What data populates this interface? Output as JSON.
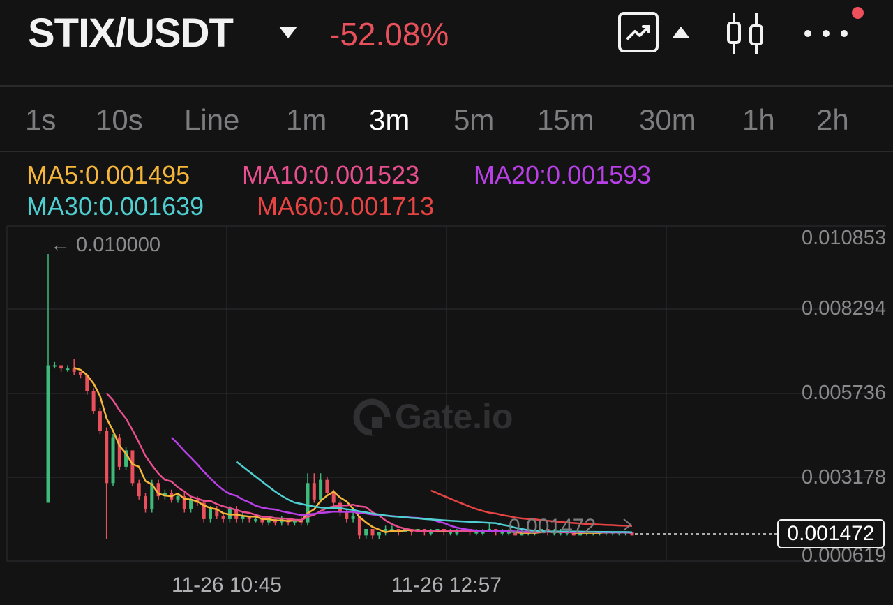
{
  "header": {
    "pair": "STIX/USDT",
    "change": "-52.08%",
    "icons": [
      "chevron-down-icon",
      "line-chart-toggle-icon",
      "chevron-up-icon",
      "candlestick-icon",
      "more-icon",
      "notification-dot"
    ]
  },
  "timeframes": [
    "1s",
    "10s",
    "Line",
    "1m",
    "3m",
    "5m",
    "15m",
    "30m",
    "1h",
    "2h"
  ],
  "active_timeframe": "3m",
  "ma": [
    {
      "label": "MA5:0.001495",
      "color": "#f5b63a"
    },
    {
      "label": "MA10:0.001523",
      "color": "#e94f8f"
    },
    {
      "label": "MA20:0.001593",
      "color": "#b93fe8"
    },
    {
      "label": "MA30:0.001639",
      "color": "#4fcfd1"
    },
    {
      "label": "MA60:0.001713",
      "color": "#e84444"
    }
  ],
  "colors": {
    "up": "#3fba7a",
    "down": "#e8505b",
    "accent": "#f0505b"
  },
  "watermark": "Gate.io",
  "chart_data": {
    "type": "candlestick",
    "y_ticks": [
      "0.010853",
      "0.008294",
      "0.005736",
      "0.003178",
      "0.000619"
    ],
    "x_ticks": [
      "11-26 10:45",
      "11-26 12:57"
    ],
    "high_marker": "← 0.010000",
    "last_price_label": "0.001472",
    "current_price": "0.001472",
    "ylim": [
      0.000619,
      0.010853
    ],
    "candles": [
      [
        0.0024,
        0.0066,
        0.01,
        0.0024
      ],
      [
        0.0066,
        0.0066,
        0.0067,
        0.0065
      ],
      [
        0.0066,
        0.0065,
        0.0066,
        0.0064
      ],
      [
        0.0065,
        0.0065,
        0.0066,
        0.0064
      ],
      [
        0.0065,
        0.0064,
        0.0068,
        0.0063
      ],
      [
        0.0064,
        0.0063,
        0.0064,
        0.0062
      ],
      [
        0.0063,
        0.0058,
        0.0063,
        0.0057
      ],
      [
        0.0058,
        0.0052,
        0.0059,
        0.0051
      ],
      [
        0.0052,
        0.0046,
        0.0053,
        0.0045
      ],
      [
        0.0046,
        0.003,
        0.0047,
        0.0013
      ],
      [
        0.003,
        0.0044,
        0.0045,
        0.0029
      ],
      [
        0.0044,
        0.0035,
        0.0045,
        0.0034
      ],
      [
        0.0035,
        0.004,
        0.0041,
        0.0034
      ],
      [
        0.004,
        0.003,
        0.004,
        0.0029
      ],
      [
        0.003,
        0.0026,
        0.0031,
        0.0025
      ],
      [
        0.0026,
        0.0022,
        0.0027,
        0.0021
      ],
      [
        0.0022,
        0.003,
        0.0031,
        0.0021
      ],
      [
        0.003,
        0.0026,
        0.0031,
        0.0025
      ],
      [
        0.0026,
        0.0027,
        0.0028,
        0.0025
      ],
      [
        0.0027,
        0.0025,
        0.0028,
        0.0024
      ],
      [
        0.0025,
        0.0026,
        0.0027,
        0.0024
      ],
      [
        0.0026,
        0.0022,
        0.0027,
        0.0021
      ],
      [
        0.0022,
        0.0025,
        0.0026,
        0.0021
      ],
      [
        0.0025,
        0.0024,
        0.0026,
        0.0023
      ],
      [
        0.0024,
        0.0019,
        0.0025,
        0.0018
      ],
      [
        0.0019,
        0.0022,
        0.0023,
        0.0018
      ],
      [
        0.0022,
        0.002,
        0.0023,
        0.0019
      ],
      [
        0.002,
        0.0019,
        0.0021,
        0.0018
      ],
      [
        0.0019,
        0.0022,
        0.0023,
        0.0018
      ],
      [
        0.0022,
        0.0019,
        0.0023,
        0.0018
      ],
      [
        0.0019,
        0.002,
        0.0021,
        0.0018
      ],
      [
        0.002,
        0.0019,
        0.002,
        0.0018
      ],
      [
        0.0019,
        0.0019,
        0.002,
        0.0018
      ],
      [
        0.0019,
        0.0018,
        0.002,
        0.0017
      ],
      [
        0.0018,
        0.0019,
        0.0019,
        0.0017
      ],
      [
        0.0019,
        0.0018,
        0.0019,
        0.0017
      ],
      [
        0.0018,
        0.0019,
        0.002,
        0.0017
      ],
      [
        0.0019,
        0.0018,
        0.0019,
        0.0017
      ],
      [
        0.0018,
        0.0019,
        0.0019,
        0.0017
      ],
      [
        0.0019,
        0.0018,
        0.002,
        0.0017
      ],
      [
        0.0018,
        0.003,
        0.0033,
        0.0017
      ],
      [
        0.003,
        0.0025,
        0.0033,
        0.0024
      ],
      [
        0.0025,
        0.0031,
        0.0033,
        0.0024
      ],
      [
        0.0031,
        0.0027,
        0.0032,
        0.0026
      ],
      [
        0.0027,
        0.0024,
        0.0028,
        0.0023
      ],
      [
        0.0024,
        0.0021,
        0.0025,
        0.002
      ],
      [
        0.0021,
        0.0019,
        0.0022,
        0.0018
      ],
      [
        0.0019,
        0.002,
        0.0021,
        0.0018
      ],
      [
        0.002,
        0.0014,
        0.002,
        0.0013
      ],
      [
        0.0014,
        0.0016,
        0.0016,
        0.0013
      ],
      [
        0.0016,
        0.0014,
        0.0016,
        0.0013
      ],
      [
        0.0014,
        0.0015,
        0.0015,
        0.0013
      ],
      [
        0.0015,
        0.0016,
        0.0017,
        0.0014
      ],
      [
        0.0016,
        0.0016,
        0.0017,
        0.0015
      ],
      [
        0.0016,
        0.0015,
        0.0016,
        0.0014
      ],
      [
        0.0015,
        0.0016,
        0.0016,
        0.0015
      ],
      [
        0.0016,
        0.0015,
        0.0016,
        0.0014
      ],
      [
        0.0015,
        0.0016,
        0.0016,
        0.0015
      ],
      [
        0.0016,
        0.0015,
        0.0016,
        0.0014
      ],
      [
        0.0015,
        0.0015,
        0.0016,
        0.0014
      ],
      [
        0.0015,
        0.0016,
        0.0016,
        0.0015
      ],
      [
        0.0016,
        0.0015,
        0.0016,
        0.0014
      ],
      [
        0.0015,
        0.0015,
        0.0016,
        0.0014
      ],
      [
        0.0015,
        0.0015,
        0.0016,
        0.0014
      ],
      [
        0.0015,
        0.0016,
        0.0016,
        0.0015
      ],
      [
        0.0016,
        0.0015,
        0.0016,
        0.0014
      ],
      [
        0.0015,
        0.0015,
        0.0016,
        0.0014
      ],
      [
        0.0015,
        0.0015,
        0.0016,
        0.0014
      ],
      [
        0.0015,
        0.0016,
        0.0018,
        0.0015
      ],
      [
        0.0016,
        0.0015,
        0.0016,
        0.0014
      ],
      [
        0.0015,
        0.0015,
        0.0016,
        0.0014
      ],
      [
        0.0015,
        0.0015,
        0.0016,
        0.0014
      ],
      [
        0.0015,
        0.0014,
        0.0015,
        0.0014
      ],
      [
        0.0014,
        0.0015,
        0.0016,
        0.0014
      ],
      [
        0.0015,
        0.0015,
        0.0016,
        0.0014
      ],
      [
        0.0015,
        0.0015,
        0.0016,
        0.0014
      ],
      [
        0.0015,
        0.0016,
        0.0016,
        0.0015
      ],
      [
        0.0016,
        0.0015,
        0.0016,
        0.0014
      ],
      [
        0.0015,
        0.0015,
        0.0016,
        0.0014
      ],
      [
        0.0015,
        0.0015,
        0.0016,
        0.0014
      ],
      [
        0.0015,
        0.0015,
        0.0015,
        0.0014
      ],
      [
        0.0015,
        0.0014,
        0.0015,
        0.0014
      ],
      [
        0.0014,
        0.0015,
        0.0015,
        0.0014
      ],
      [
        0.0015,
        0.0015,
        0.0015,
        0.0014
      ],
      [
        0.0015,
        0.0015,
        0.0015,
        0.0014
      ],
      [
        0.0015,
        0.0015,
        0.0015,
        0.0014
      ],
      [
        0.0015,
        0.0015,
        0.0015,
        0.0014
      ],
      [
        0.0015,
        0.0015,
        0.0015,
        0.0014
      ],
      [
        0.0015,
        0.0015,
        0.0015,
        0.0014
      ],
      [
        0.0015,
        0.0015,
        0.0015,
        0.0014
      ],
      [
        0.0015,
        0.0014,
        0.0015,
        0.0014
      ]
    ]
  }
}
